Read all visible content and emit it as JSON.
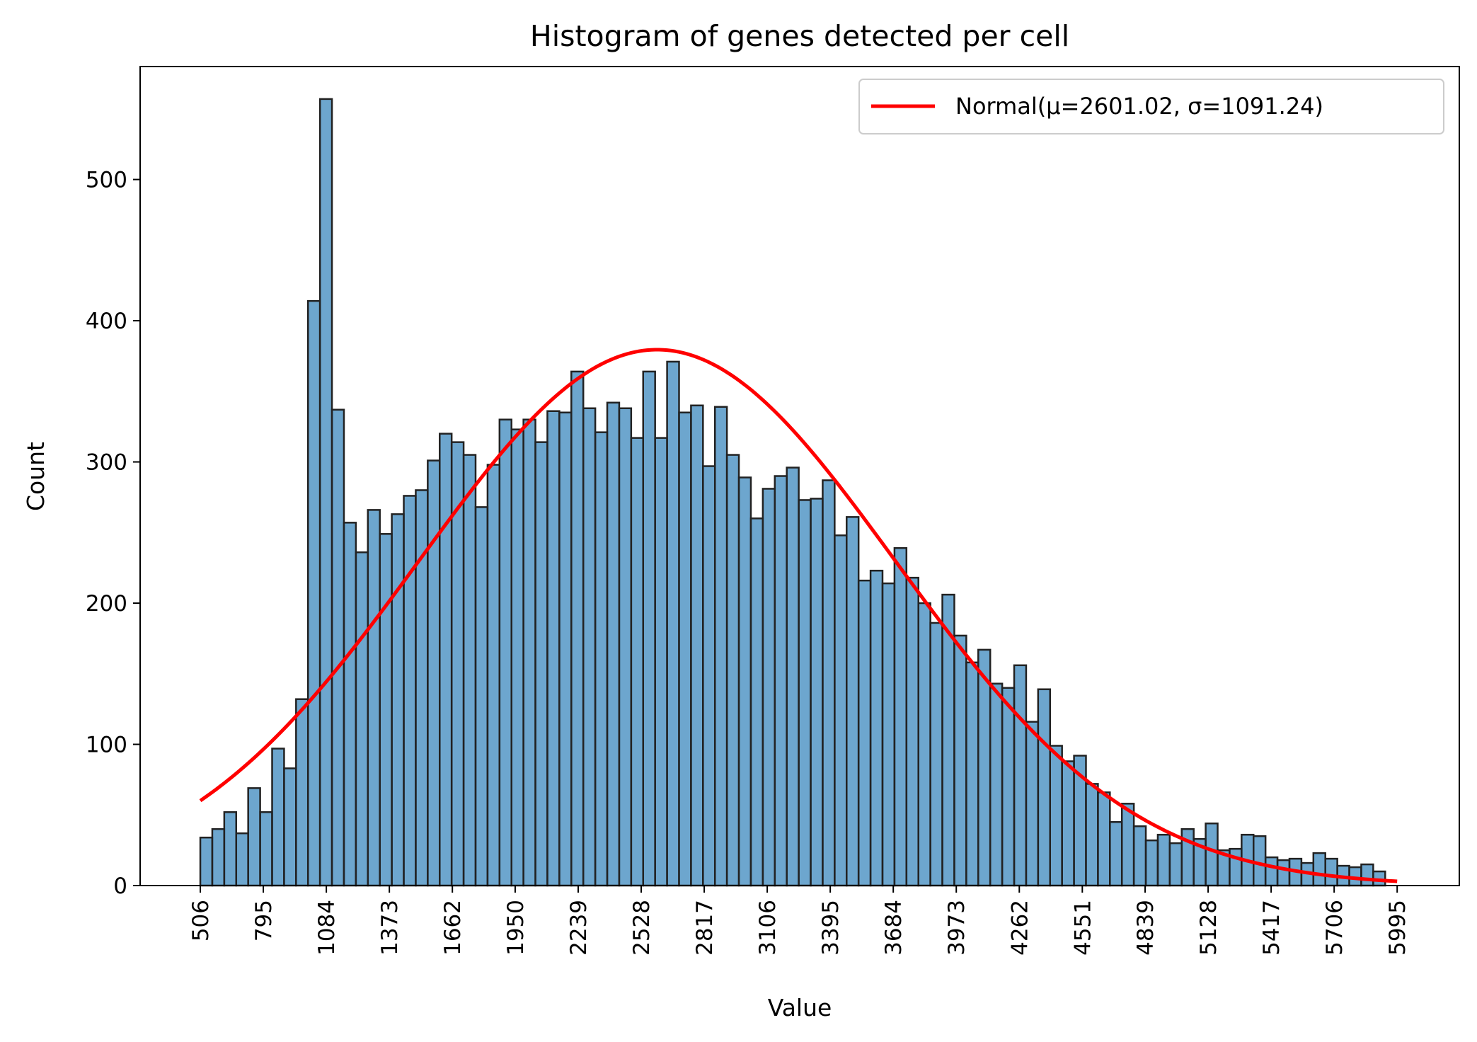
{
  "chart_data": {
    "type": "bar",
    "title": "Histogram of genes detected per cell",
    "xlabel": "Value",
    "ylabel": "Count",
    "xlim": [
      230,
      6280
    ],
    "ylim": [
      0,
      580
    ],
    "grid": false,
    "legend_position": "top-right",
    "bin_start": 506,
    "bin_width": 54.89,
    "counts": [
      34,
      40,
      52,
      37,
      69,
      52,
      97,
      83,
      132,
      414,
      557,
      337,
      257,
      236,
      266,
      249,
      263,
      276,
      280,
      301,
      320,
      314,
      305,
      268,
      298,
      330,
      323,
      330,
      314,
      336,
      335,
      364,
      338,
      321,
      342,
      338,
      317,
      364,
      317,
      371,
      335,
      340,
      297,
      339,
      305,
      289,
      260,
      281,
      290,
      296,
      273,
      274,
      287,
      248,
      261,
      216,
      223,
      214,
      239,
      218,
      200,
      186,
      206,
      177,
      158,
      167,
      143,
      140,
      156,
      116,
      139,
      99,
      88,
      92,
      72,
      66,
      45,
      58,
      42,
      32,
      36,
      30,
      40,
      33,
      44,
      25,
      26,
      36,
      35,
      20,
      18,
      19,
      16,
      23,
      19,
      14,
      13,
      15,
      10
    ],
    "x_ticks": [
      506,
      795,
      1084,
      1373,
      1662,
      1950,
      2239,
      2528,
      2817,
      3106,
      3395,
      3684,
      3973,
      4262,
      4551,
      4839,
      5128,
      5417,
      5706,
      5995
    ],
    "y_ticks": [
      0,
      100,
      200,
      300,
      400,
      500
    ],
    "normal_fit": {
      "name": "Normal(μ=2601.02, σ=1091.24)",
      "mu": 2601.02,
      "sigma": 1091.24,
      "peak": 379.5,
      "x_range": [
        506,
        5995
      ]
    },
    "colors": {
      "bar_fill": "#1f77b4",
      "bar_fill_opacity": 0.65,
      "bar_edge": "#222222",
      "fit_line": "#ff0000"
    }
  }
}
